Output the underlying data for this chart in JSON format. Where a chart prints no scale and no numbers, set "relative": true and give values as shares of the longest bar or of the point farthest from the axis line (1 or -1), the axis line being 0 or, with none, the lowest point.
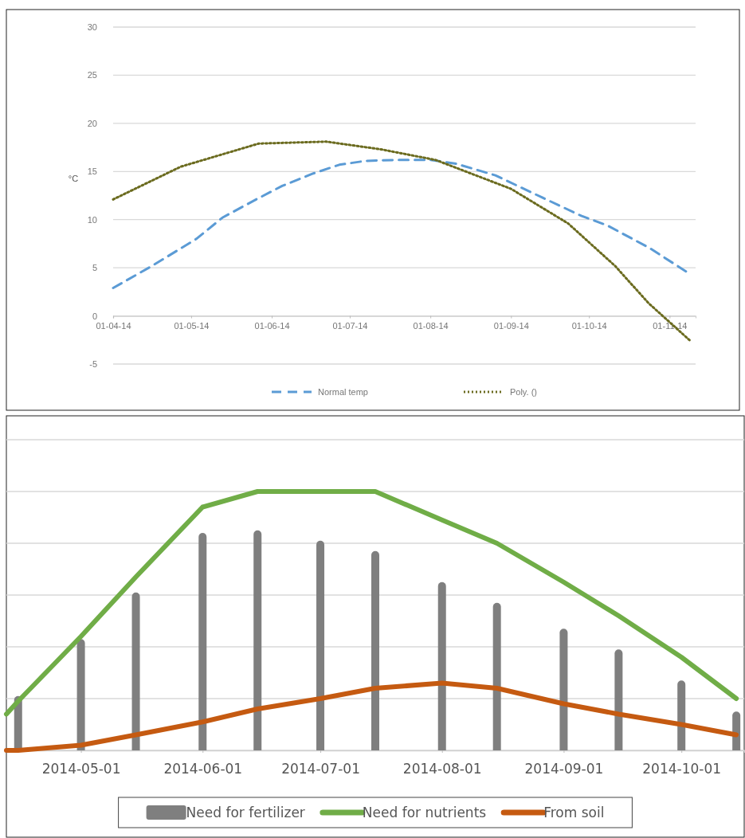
{
  "chart_data": [
    {
      "type": "line",
      "ylabel": "°C",
      "ylim": [
        -5,
        30
      ],
      "yticks": [
        -5,
        0,
        5,
        10,
        15,
        20,
        25,
        30
      ],
      "xlim": [
        "2014-04-01",
        "2014-11-11"
      ],
      "xticks": [
        {
          "value": "2014-04-01",
          "label": "01-04-14"
        },
        {
          "value": "2014-05-01",
          "label": "01-05-14"
        },
        {
          "value": "2014-06-01",
          "label": "01-06-14"
        },
        {
          "value": "2014-07-01",
          "label": "01-07-14"
        },
        {
          "value": "2014-08-01",
          "label": "01-08-14"
        },
        {
          "value": "2014-09-01",
          "label": "01-09-14"
        },
        {
          "value": "2014-10-01",
          "label": "01-10-14"
        },
        {
          "value": "2014-11-01",
          "label": "01-11-14"
        }
      ],
      "grid": "y",
      "legend": "bottom",
      "series": [
        {
          "name": "Normal temp",
          "color": "#5b9bd5",
          "line_style": "dashed",
          "x": [
            "2014-04-01",
            "2014-04-16",
            "2014-05-03",
            "2014-05-13",
            "2014-05-26",
            "2014-06-05",
            "2014-06-17",
            "2014-06-27",
            "2014-07-07",
            "2014-07-19",
            "2014-08-01",
            "2014-08-11",
            "2014-08-26",
            "2014-09-13",
            "2014-09-28",
            "2014-10-08",
            "2014-10-24",
            "2014-11-08"
          ],
          "values": [
            2.9,
            5.2,
            8.0,
            10.2,
            12.1,
            13.5,
            14.8,
            15.7,
            16.1,
            16.2,
            16.2,
            15.8,
            14.6,
            12.3,
            10.4,
            9.4,
            7.1,
            4.5
          ]
        },
        {
          "name": "Poly. ()",
          "color": "#6b6b1f",
          "line_style": "dotted",
          "x": [
            "2014-04-01",
            "2014-04-27",
            "2014-05-27",
            "2014-06-22",
            "2014-07-13",
            "2014-08-03",
            "2014-09-01",
            "2014-09-23",
            "2014-10-11",
            "2014-10-24",
            "2014-11-09"
          ],
          "values": [
            12.1,
            15.5,
            17.9,
            18.1,
            17.3,
            16.2,
            13.2,
            9.6,
            5.2,
            1.3,
            -2.6
          ]
        }
      ]
    },
    {
      "type": "bar",
      "relative": true,
      "xlim": [
        "2014-04-12",
        "2014-10-17"
      ],
      "xticks": [
        "2014-05-01",
        "2014-06-01",
        "2014-07-01",
        "2014-08-01",
        "2014-09-01",
        "2014-10-01"
      ],
      "grid": "y",
      "legend": "bottom",
      "series": [
        {
          "name": "Need for fertilizer",
          "color": "#7f7f7f",
          "x": [
            "2014-04-15",
            "2014-05-01",
            "2014-05-15",
            "2014-06-01",
            "2014-06-15",
            "2014-07-01",
            "2014-07-15",
            "2014-08-01",
            "2014-08-15",
            "2014-09-01",
            "2014-09-15",
            "2014-10-01",
            "2014-10-15"
          ],
          "values": [
            0.21,
            0.43,
            0.61,
            0.84,
            0.85,
            0.81,
            0.77,
            0.65,
            0.57,
            0.47,
            0.39,
            0.27,
            0.15
          ]
        },
        {
          "name": "Need for nutrients",
          "type": "line",
          "color": "#70ad47",
          "x": [
            "2014-04-12",
            "2014-04-15",
            "2014-05-01",
            "2014-05-15",
            "2014-06-01",
            "2014-06-15",
            "2014-07-01",
            "2014-07-15",
            "2014-08-01",
            "2014-08-15",
            "2014-09-01",
            "2014-09-15",
            "2014-10-01",
            "2014-10-15"
          ],
          "values": [
            0.14,
            0.19,
            0.44,
            0.67,
            0.94,
            1.0,
            1.0,
            1.0,
            0.89,
            0.8,
            0.65,
            0.52,
            0.36,
            0.2
          ]
        },
        {
          "name": "From soil",
          "type": "line",
          "color": "#c55a11",
          "x": [
            "2014-04-12",
            "2014-04-15",
            "2014-05-01",
            "2014-05-15",
            "2014-06-01",
            "2014-06-15",
            "2014-07-01",
            "2014-07-15",
            "2014-08-01",
            "2014-08-15",
            "2014-09-01",
            "2014-09-15",
            "2014-10-01",
            "2014-10-15"
          ],
          "values": [
            0.0,
            0.0,
            0.02,
            0.06,
            0.11,
            0.16,
            0.2,
            0.24,
            0.26,
            0.24,
            0.18,
            0.14,
            0.1,
            0.06
          ]
        }
      ]
    }
  ]
}
